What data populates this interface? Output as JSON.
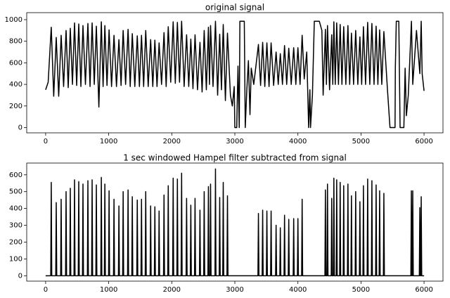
{
  "chart_data": [
    {
      "type": "line",
      "title": "original signal",
      "xlim": [
        -300,
        6300
      ],
      "xticks": [
        0,
        1000,
        2000,
        3000,
        4000,
        5000,
        6000
      ],
      "ylim": [
        -49,
        1065
      ],
      "yticks": [
        0,
        200,
        400,
        600,
        800,
        1000
      ],
      "series": [
        {
          "color": "#000000",
          "x": [
            0,
            40,
            89,
            128,
            168,
            207,
            246,
            285,
            324,
            358,
            391,
            425,
            458,
            492,
            525,
            559,
            592,
            631,
            670,
            704,
            737,
            771,
            804,
            844,
            883,
            911,
            939,
            973,
            1006,
            1045,
            1084,
            1123,
            1162,
            1196,
            1229,
            1268,
            1307,
            1341,
            1374,
            1414,
            1453,
            1487,
            1520,
            1554,
            1587,
            1626,
            1665,
            1699,
            1732,
            1766,
            1799,
            1838,
            1877,
            1911,
            1944,
            1983,
            2022,
            2056,
            2089,
            2123,
            2156,
            2196,
            2235,
            2269,
            2302,
            2336,
            2369,
            2408,
            2447,
            2481,
            2514,
            2548,
            2581,
            2598,
            2615,
            2654,
            2693,
            2727,
            2760,
            2788,
            2816,
            2850,
            2883,
            2930,
            2960,
            2990,
            3000,
            3030,
            3050,
            3070,
            3080,
            3150,
            3165,
            3190,
            3215,
            3240,
            3260,
            3300,
            3374,
            3408,
            3441,
            3475,
            3508,
            3542,
            3575,
            3615,
            3654,
            3688,
            3721,
            3755,
            3788,
            3822,
            3855,
            3894,
            3933,
            3967,
            4000,
            4034,
            4067,
            4100,
            4140,
            4170,
            4190,
            4200,
            4230,
            4260,
            4340,
            4380,
            4400,
            4436,
            4452,
            4469,
            4502,
            4536,
            4553,
            4570,
            4592,
            4615,
            4643,
            4670,
            4698,
            4726,
            4760,
            4793,
            4821,
            4849,
            4883,
            4916,
            4950,
            4983,
            5011,
            5039,
            5073,
            5106,
            5140,
            5173,
            5207,
            5240,
            5268,
            5296,
            5330,
            5363,
            5420,
            5460,
            5540,
            5545,
            5560,
            5600,
            5620,
            5680,
            5700,
            5720,
            5750,
            5800,
            5821,
            5880,
            5933,
            5955,
            5970,
            6000
          ],
          "values": [
            350,
            420,
            930,
            290,
            835,
            290,
            855,
            380,
            900,
            370,
            920,
            400,
            970,
            390,
            960,
            380,
            945,
            400,
            965,
            380,
            970,
            400,
            940,
            190,
            980,
            380,
            945,
            390,
            905,
            380,
            855,
            380,
            815,
            390,
            900,
            400,
            910,
            380,
            870,
            380,
            850,
            380,
            855,
            380,
            900,
            380,
            815,
            380,
            810,
            380,
            785,
            400,
            880,
            380,
            935,
            420,
            980,
            410,
            975,
            420,
            985,
            380,
            860,
            380,
            820,
            360,
            860,
            350,
            790,
            330,
            900,
            350,
            930,
            400,
            945,
            380,
            985,
            300,
            865,
            350,
            955,
            250,
            875,
            300,
            200,
            380,
            0,
            0,
            570,
            0,
            985,
            985,
            0,
            350,
            620,
            120,
            550,
            400,
            770,
            390,
            790,
            380,
            785,
            380,
            785,
            390,
            700,
            400,
            685,
            400,
            760,
            400,
            735,
            400,
            740,
            400,
            740,
            400,
            855,
            450,
            700,
            0,
            350,
            0,
            300,
            985,
            985,
            900,
            300,
            910,
            400,
            945,
            350,
            860,
            400,
            980,
            400,
            970,
            400,
            955,
            400,
            935,
            400,
            945,
            400,
            875,
            400,
            900,
            400,
            840,
            400,
            935,
            400,
            975,
            400,
            965,
            400,
            940,
            400,
            905,
            400,
            890,
            350,
            0,
            0,
            560,
            985,
            985,
            0,
            0,
            550,
            110,
            300,
            985,
            400,
            900,
            500,
            985,
            500,
            340
          ]
        }
      ]
    },
    {
      "type": "line",
      "title": "1 sec windowed Hampel filter subtracted from signal",
      "xlim": [
        -300,
        6300
      ],
      "xticks": [
        0,
        1000,
        2000,
        3000,
        4000,
        5000,
        6000
      ],
      "ylim": [
        -32,
        670
      ],
      "yticks": [
        0,
        100,
        200,
        300,
        400,
        500,
        600
      ],
      "series": [
        {
          "color": "#000000",
          "x": [
            0,
            81,
            89,
            97,
            160,
            168,
            176,
            238,
            246,
            254,
            316,
            324,
            332,
            383,
            391,
            399,
            450,
            458,
            466,
            517,
            525,
            533,
            584,
            592,
            600,
            662,
            670,
            678,
            729,
            737,
            745,
            796,
            804,
            812,
            875,
            883,
            891,
            931,
            939,
            947,
            998,
            1006,
            1014,
            1076,
            1084,
            1092,
            1154,
            1162,
            1170,
            1221,
            1229,
            1237,
            1299,
            1307,
            1315,
            1366,
            1374,
            1382,
            1445,
            1453,
            1461,
            1512,
            1520,
            1528,
            1579,
            1587,
            1595,
            1657,
            1665,
            1673,
            1724,
            1732,
            1740,
            1791,
            1799,
            1807,
            1869,
            1877,
            1885,
            1936,
            1944,
            1952,
            2014,
            2022,
            2030,
            2081,
            2089,
            2097,
            2148,
            2156,
            2164,
            2227,
            2235,
            2243,
            2294,
            2302,
            2310,
            2361,
            2369,
            2377,
            2439,
            2447,
            2455,
            2506,
            2514,
            2522,
            2573,
            2581,
            2589,
            2607,
            2615,
            2623,
            2685,
            2693,
            2701,
            2752,
            2760,
            2768,
            2808,
            2816,
            2824,
            2875,
            2883,
            2891,
            3366,
            3374,
            3382,
            3433,
            3441,
            3449,
            3500,
            3508,
            3516,
            3567,
            3575,
            3583,
            3646,
            3654,
            3662,
            3713,
            3721,
            3729,
            3780,
            3788,
            3796,
            3847,
            3855,
            3863,
            3925,
            3933,
            3941,
            3992,
            4000,
            4008,
            4059,
            4067,
            4075,
            4428,
            4436,
            4444,
            4461,
            4469,
            4477,
            4528,
            4536,
            4544,
            4562,
            4570,
            4578,
            4607,
            4615,
            4623,
            4662,
            4670,
            4678,
            4718,
            4726,
            4734,
            4785,
            4793,
            4801,
            4841,
            4849,
            4857,
            4908,
            4916,
            4924,
            4975,
            4983,
            4991,
            5031,
            5039,
            5047,
            5098,
            5106,
            5114,
            5165,
            5173,
            5181,
            5232,
            5240,
            5248,
            5288,
            5296,
            5304,
            5355,
            5363,
            5371,
            5791,
            5799,
            5807,
            5813,
            5821,
            5829,
            5925,
            5933,
            5941,
            5947,
            5955,
            5963,
            6000
          ],
          "values": [
            0,
            0,
            555,
            0,
            0,
            435,
            0,
            0,
            455,
            0,
            0,
            500,
            0,
            0,
            520,
            0,
            0,
            570,
            0,
            0,
            560,
            0,
            0,
            545,
            0,
            0,
            565,
            0,
            0,
            570,
            0,
            0,
            540,
            0,
            0,
            585,
            0,
            0,
            545,
            0,
            0,
            505,
            0,
            0,
            455,
            0,
            0,
            415,
            0,
            0,
            500,
            0,
            0,
            510,
            0,
            0,
            470,
            0,
            0,
            450,
            0,
            0,
            455,
            0,
            0,
            500,
            0,
            0,
            415,
            0,
            0,
            410,
            0,
            0,
            385,
            0,
            0,
            480,
            0,
            0,
            535,
            0,
            0,
            580,
            0,
            0,
            575,
            0,
            0,
            610,
            0,
            0,
            460,
            0,
            0,
            420,
            0,
            0,
            460,
            0,
            0,
            390,
            0,
            0,
            500,
            0,
            0,
            530,
            0,
            0,
            545,
            0,
            0,
            635,
            0,
            0,
            465,
            0,
            0,
            555,
            0,
            0,
            475,
            0,
            0,
            370,
            0,
            0,
            390,
            0,
            0,
            385,
            0,
            0,
            385,
            0,
            0,
            300,
            0,
            0,
            285,
            0,
            0,
            360,
            0,
            0,
            335,
            0,
            0,
            340,
            0,
            0,
            340,
            0,
            0,
            455,
            0,
            0,
            510,
            0,
            0,
            545,
            0,
            0,
            460,
            0,
            0,
            580,
            0,
            0,
            570,
            0,
            0,
            555,
            0,
            0,
            535,
            0,
            0,
            545,
            0,
            0,
            475,
            0,
            0,
            500,
            0,
            0,
            440,
            0,
            0,
            535,
            0,
            0,
            575,
            0,
            0,
            565,
            0,
            0,
            540,
            0,
            0,
            505,
            0,
            0,
            490,
            0,
            0,
            505,
            0,
            0,
            505,
            0,
            0,
            405,
            0,
            0,
            470,
            0,
            0
          ]
        }
      ]
    }
  ]
}
